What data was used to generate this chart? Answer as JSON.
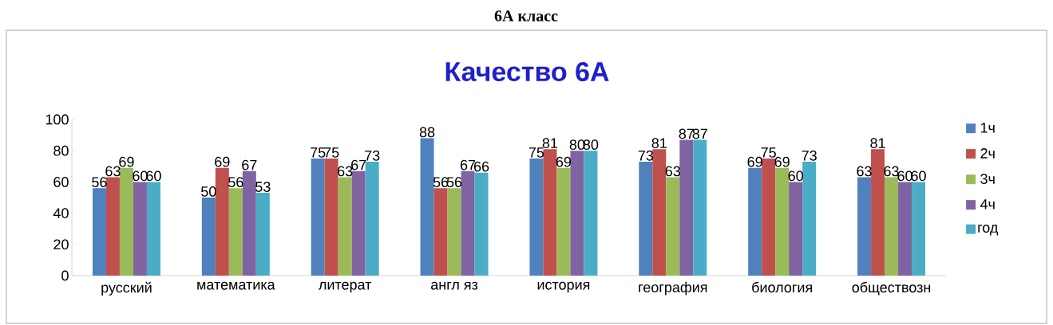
{
  "chart_data": {
    "type": "bar",
    "title": "6А класс",
    "subtitle": "Качество 6А",
    "categories": [
      "русский",
      "математика",
      "литерат",
      "англ яз",
      "история",
      "география",
      "биология",
      "обществозн"
    ],
    "series": [
      {
        "name": "1ч",
        "color": "#4f81bd",
        "values": [
          56,
          50,
          75,
          88,
          75,
          73,
          69,
          63
        ]
      },
      {
        "name": "2ч",
        "color": "#c0504d",
        "values": [
          63,
          69,
          75,
          56,
          81,
          81,
          75,
          81
        ]
      },
      {
        "name": "3ч",
        "color": "#9bbb59",
        "values": [
          69,
          56,
          63,
          56,
          69,
          63,
          69,
          63
        ]
      },
      {
        "name": "4ч",
        "color": "#8064a2",
        "values": [
          60,
          67,
          67,
          67,
          80,
          87,
          60,
          60
        ]
      },
      {
        "name": "год",
        "color": "#4bacc6",
        "values": [
          60,
          53,
          73,
          66,
          80,
          87,
          73,
          60
        ]
      }
    ],
    "ylim": [
      0,
      100
    ],
    "yticks": [
      0,
      20,
      40,
      60,
      80,
      100
    ],
    "legend": "right",
    "data_labels": true
  }
}
